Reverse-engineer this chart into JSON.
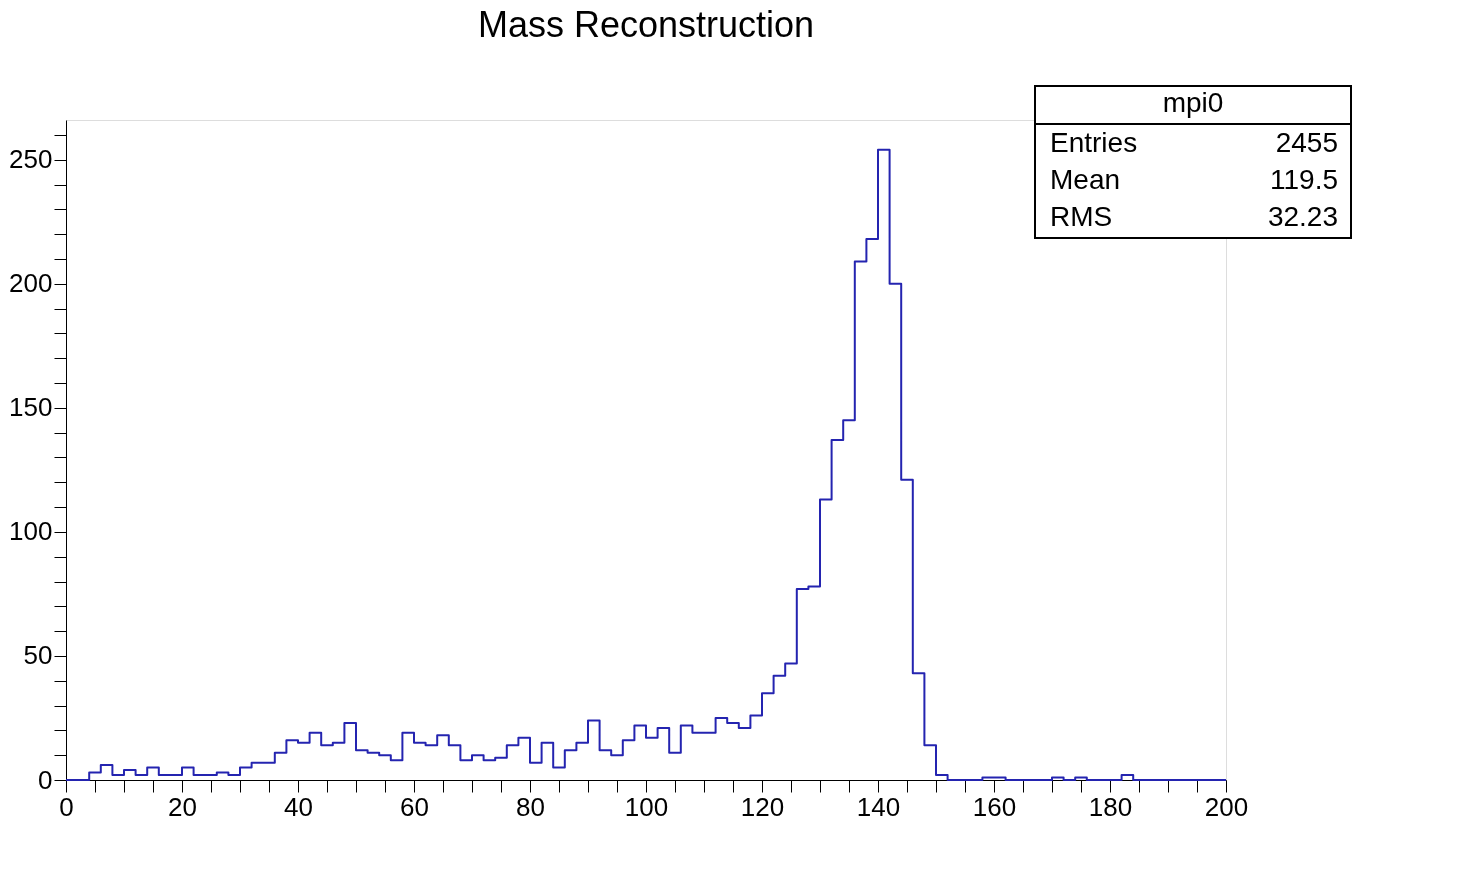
{
  "chart_data": {
    "type": "histogram",
    "title": "Mass Reconstruction",
    "color": "#2424b0",
    "bins": [
      0,
      2,
      4,
      6,
      8,
      10,
      12,
      14,
      16,
      18,
      20,
      22,
      24,
      26,
      28,
      30,
      32,
      34,
      36,
      38,
      40,
      42,
      44,
      46,
      48,
      50,
      52,
      54,
      56,
      58,
      60,
      62,
      64,
      66,
      68,
      70,
      72,
      74,
      76,
      78,
      80,
      82,
      84,
      86,
      88,
      90,
      92,
      94,
      96,
      98,
      100,
      102,
      104,
      106,
      108,
      110,
      112,
      114,
      116,
      118,
      120,
      122,
      124,
      126,
      128,
      130,
      132,
      134,
      136,
      138,
      140,
      142,
      144,
      146,
      148,
      150,
      152,
      154,
      156,
      158,
      160,
      162,
      164,
      166,
      168,
      170,
      172,
      174,
      176,
      178,
      180,
      182,
      184,
      186,
      188,
      190,
      192,
      194,
      196,
      198,
      200
    ],
    "values": [
      0,
      0,
      3,
      6,
      2,
      4,
      2,
      5,
      2,
      2,
      5,
      2,
      2,
      3,
      2,
      5,
      7,
      7,
      11,
      16,
      15,
      19,
      14,
      15,
      23,
      12,
      11,
      10,
      8,
      19,
      15,
      14,
      18,
      14,
      8,
      10,
      8,
      9,
      14,
      17,
      7,
      15,
      5,
      12,
      15,
      24,
      12,
      10,
      16,
      22,
      17,
      21,
      11,
      22,
      19,
      19,
      25,
      23,
      21,
      26,
      35,
      42,
      47,
      77,
      78,
      113,
      137,
      145,
      209,
      218,
      254,
      200,
      121,
      43,
      14,
      2,
      0,
      0,
      0,
      1,
      1,
      0,
      0,
      0,
      0,
      1,
      0,
      1,
      0,
      0,
      0,
      2,
      0,
      0,
      0,
      0,
      0,
      0,
      0,
      0
    ],
    "xlim": [
      0,
      200
    ],
    "ylim": [
      0,
      266
    ],
    "xticks": [
      0,
      {
        "value": 5,
        "label": null
      },
      {
        "value": 10,
        "label": null
      },
      {
        "value": 15,
        "label": null
      },
      20,
      {
        "value": 25,
        "label": null
      },
      {
        "value": 30,
        "label": null
      },
      {
        "value": 35,
        "label": null
      },
      40,
      {
        "value": 45,
        "label": null
      },
      {
        "value": 50,
        "label": null
      },
      {
        "value": 55,
        "label": null
      },
      60,
      {
        "value": 65,
        "label": null
      },
      {
        "value": 70,
        "label": null
      },
      {
        "value": 75,
        "label": null
      },
      80,
      {
        "value": 85,
        "label": null
      },
      {
        "value": 90,
        "label": null
      },
      {
        "value": 95,
        "label": null
      },
      100,
      {
        "value": 105,
        "label": null
      },
      {
        "value": 110,
        "label": null
      },
      {
        "value": 115,
        "label": null
      },
      120,
      {
        "value": 125,
        "label": null
      },
      {
        "value": 130,
        "label": null
      },
      {
        "value": 135,
        "label": null
      },
      140,
      {
        "value": 145,
        "label": null
      },
      {
        "value": 150,
        "label": null
      },
      {
        "value": 155,
        "label": null
      },
      160,
      {
        "value": 165,
        "label": null
      },
      {
        "value": 170,
        "label": null
      },
      {
        "value": 175,
        "label": null
      },
      180,
      {
        "value": 185,
        "label": null
      },
      {
        "value": 190,
        "label": null
      },
      {
        "value": 195,
        "label": null
      },
      200
    ],
    "yticks": [
      0,
      {
        "value": 10,
        "label": null
      },
      {
        "value": 20,
        "label": null
      },
      {
        "value": 30,
        "label": null
      },
      {
        "value": 40,
        "label": null
      },
      50,
      {
        "value": 60,
        "label": null
      },
      {
        "value": 70,
        "label": null
      },
      {
        "value": 80,
        "label": null
      },
      {
        "value": 90,
        "label": null
      },
      100,
      {
        "value": 110,
        "label": null
      },
      {
        "value": 120,
        "label": null
      },
      {
        "value": 130,
        "label": null
      },
      {
        "value": 140,
        "label": null
      },
      150,
      {
        "value": 160,
        "label": null
      },
      {
        "value": 170,
        "label": null
      },
      {
        "value": 180,
        "label": null
      },
      {
        "value": 190,
        "label": null
      },
      200,
      {
        "value": 210,
        "label": null
      },
      {
        "value": 220,
        "label": null
      },
      {
        "value": 230,
        "label": null
      },
      {
        "value": 240,
        "label": null
      },
      250,
      {
        "value": 260,
        "label": null
      }
    ],
    "annotations": [
      "mpi0",
      "Entries",
      "2455",
      "Mean",
      "119.5",
      "RMS",
      "32.23"
    ]
  }
}
